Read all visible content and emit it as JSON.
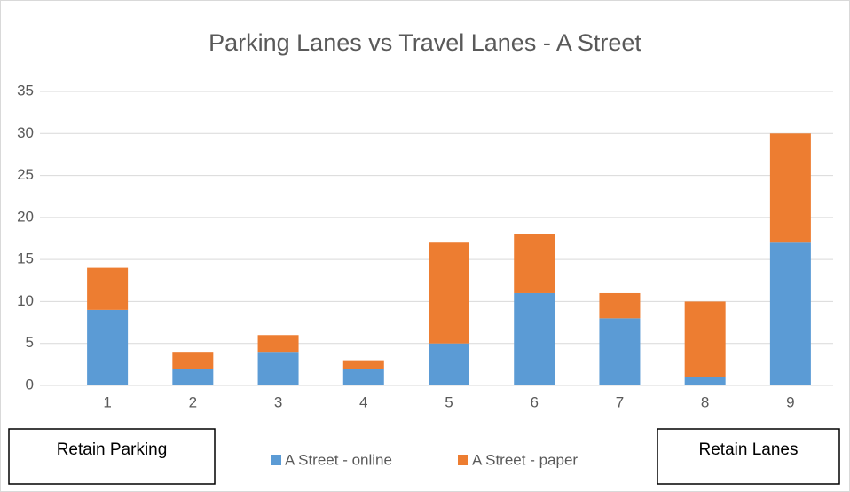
{
  "chart_data": {
    "type": "stacked_bar",
    "title": "Parking Lanes vs Travel Lanes - A Street",
    "categories": [
      "1",
      "2",
      "3",
      "4",
      "5",
      "6",
      "7",
      "8",
      "9"
    ],
    "series": [
      {
        "name": "A Street - online",
        "color": "#5b9bd5",
        "values": [
          9,
          2,
          4,
          2,
          5,
          11,
          8,
          1,
          17
        ]
      },
      {
        "name": "A Street - paper",
        "color": "#ed7d31",
        "values": [
          5,
          2,
          2,
          1,
          12,
          7,
          3,
          9,
          13
        ]
      }
    ],
    "ylim": [
      0,
      35
    ],
    "yticks": [
      0,
      5,
      10,
      15,
      20,
      25,
      30,
      35
    ],
    "grid": true,
    "legend": "bottom",
    "annotations": [
      "Retain Parking",
      "Retain Lanes"
    ]
  }
}
